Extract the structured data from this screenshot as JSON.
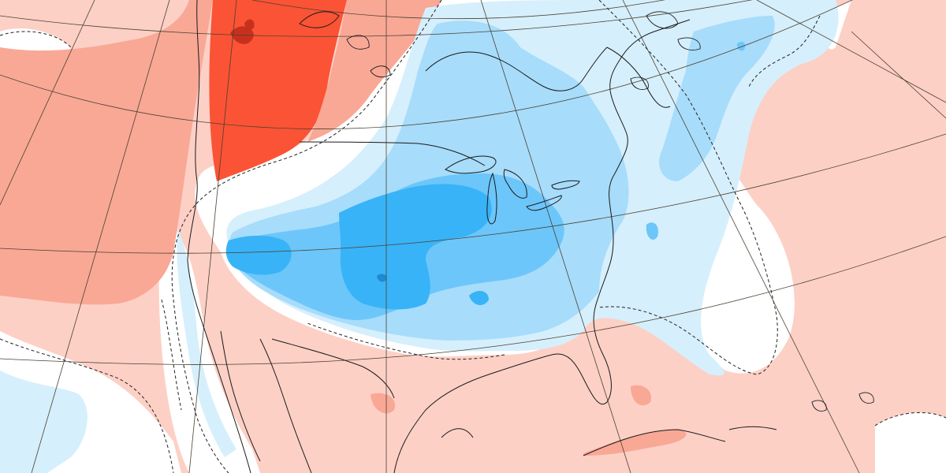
{
  "map": {
    "colors": {
      "background": "#ffffff",
      "warm_light": "#fdd0c6",
      "warm_medium": "#f9a896",
      "warm_dark": "#fb5335",
      "warm_darkest": "#c8301e",
      "cold_lightest": "#d6effc",
      "cold_light": "#a7dcfb",
      "cold_medium": "#6cc6fa",
      "cold_strong": "#38b3f7",
      "cold_darkest": "#1f8ad0",
      "coastline": "#1a1a1a",
      "graticule": "#4a4030",
      "contour_dashed": "#222222"
    }
  }
}
